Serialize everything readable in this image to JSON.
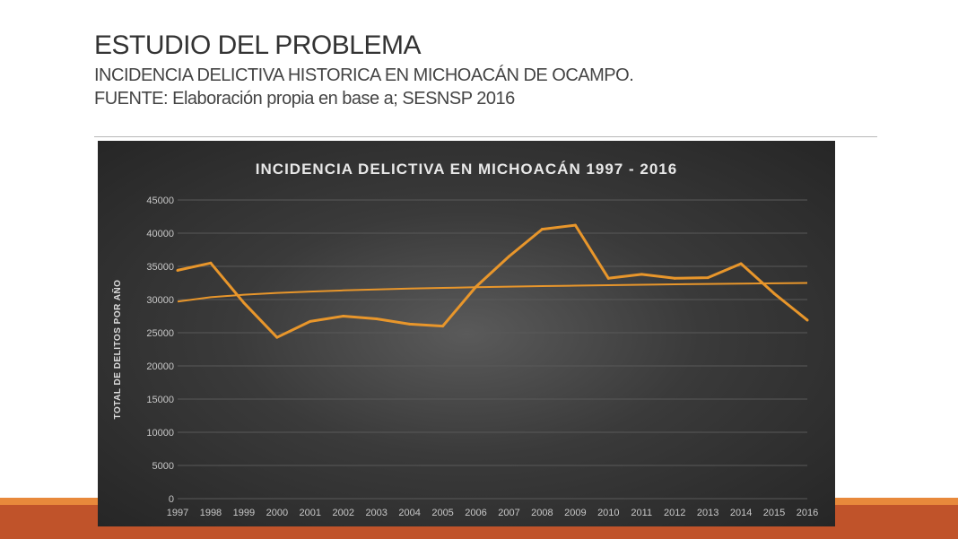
{
  "slide": {
    "title": "ESTUDIO DEL PROBLEMA",
    "subtitle_line1": "INCIDENCIA DELICTIVA HISTORICA EN MICHOACÁN DE OCAMPO.",
    "subtitle_line2": "FUENTE: Elaboración propia en base a; SESNSP 2016"
  },
  "colors": {
    "series_line": "#e8962b",
    "trend_line": "#e8962b",
    "gridline": "#595959",
    "footer": "#c0532a"
  },
  "chart_data": {
    "type": "line",
    "title": "INCIDENCIA DELICTIVA EN MICHOACÁN 1997 - 2016",
    "xlabel": "",
    "ylabel": "TOTAL DE DELITOS POR AÑO",
    "categories": [
      "1997",
      "1998",
      "1999",
      "2000",
      "2001",
      "2002",
      "2003",
      "2004",
      "2005",
      "2006",
      "2007",
      "2008",
      "2009",
      "2010",
      "2011",
      "2012",
      "2013",
      "2014",
      "2015",
      "2016"
    ],
    "series": [
      {
        "values": [
          34400,
          35500,
          29500,
          24300,
          26700,
          27500,
          27100,
          26300,
          26000,
          31900,
          36500,
          40600,
          41200,
          33200,
          33800,
          33200,
          33300,
          35400,
          30900,
          26900
        ]
      }
    ],
    "trendline": {
      "type": "logarithmic",
      "start": 29700,
      "end": 32500
    },
    "ylim": [
      0,
      45000
    ],
    "yticks": [
      0,
      5000,
      10000,
      15000,
      20000,
      25000,
      30000,
      35000,
      40000,
      45000
    ],
    "grid": true,
    "legend": "none"
  }
}
